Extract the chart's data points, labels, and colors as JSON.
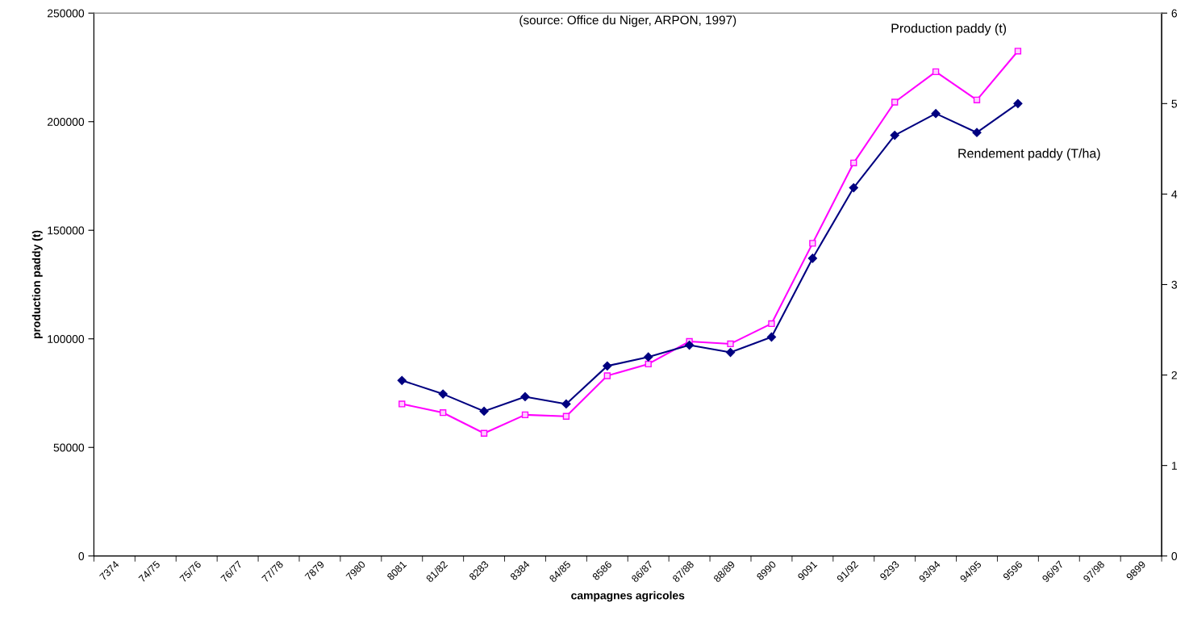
{
  "chart_data": {
    "type": "line",
    "title": "(source: Office du Niger, ARPON, 1997)",
    "xlabel": "campagnes agricoles",
    "ylabel": "production paddy (t)",
    "categories": [
      "7374",
      "74/75",
      "75/76",
      "76/77",
      "77/78",
      "7879",
      "7980",
      "8081",
      "81/82",
      "8283",
      "8384",
      "84/85",
      "8586",
      "86/87",
      "87/88",
      "88/89",
      "8990",
      "9091",
      "91/92",
      "9293",
      "93/94",
      "94/95",
      "9596",
      "96/97",
      "97/98",
      "9899"
    ],
    "series": [
      {
        "name": "Production paddy (t)",
        "color": "#ff00ff",
        "marker": "square",
        "values": [
          null,
          null,
          null,
          null,
          null,
          null,
          null,
          70000,
          66000,
          56500,
          65000,
          64300,
          83000,
          88400,
          98800,
          97700,
          107000,
          144000,
          181000,
          209000,
          223000,
          210000,
          232500,
          null,
          null,
          null
        ]
      },
      {
        "name": "Rendement paddy (T/ha)",
        "color": "#000080",
        "marker": "diamond",
        "axis": "y2",
        "values": [
          null,
          null,
          null,
          null,
          null,
          null,
          null,
          1.94,
          1.79,
          1.6,
          1.76,
          1.68,
          2.1,
          2.2,
          2.33,
          2.25,
          2.42,
          3.29,
          4.07,
          4.65,
          4.89,
          4.68,
          5.0,
          null,
          null,
          null
        ]
      }
    ],
    "ylim": [
      0,
      250000
    ],
    "yticks": [
      0,
      50000,
      100000,
      150000,
      200000,
      250000
    ],
    "y2lim": [
      0,
      6
    ],
    "y2ticks": [
      0,
      1,
      2,
      3,
      4,
      5,
      6
    ],
    "grid": false,
    "legend": false,
    "line_style": "solid"
  }
}
